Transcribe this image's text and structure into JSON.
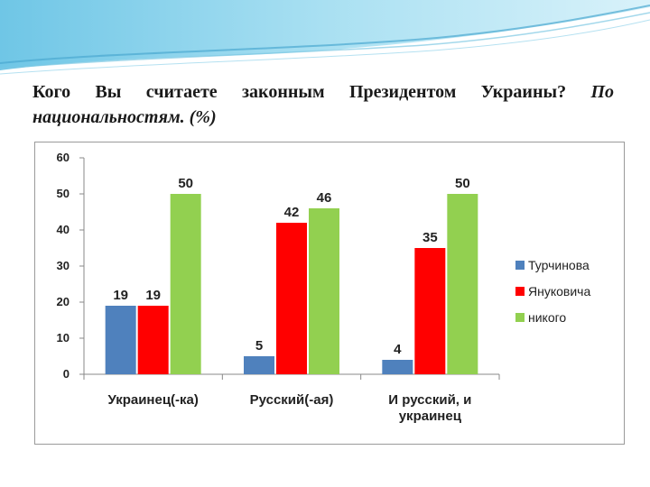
{
  "slide": {
    "title_line1": "Кого Вы считаете законным Президентом Украины?",
    "title_line1_italic": "По",
    "title_line2": "национальностям. (%)"
  },
  "chart_data": {
    "type": "bar",
    "title": "",
    "xlabel": "",
    "ylabel": "",
    "ylim": [
      0,
      60
    ],
    "yticks": [
      0,
      10,
      20,
      30,
      40,
      50,
      60
    ],
    "grid": false,
    "legend_position": "right",
    "categories": [
      "Украинец(-ка)",
      "Русский(-ая)",
      "И русский, и украинец"
    ],
    "category_lines": [
      [
        "Украинец(-ка)"
      ],
      [
        "Русский(-ая)"
      ],
      [
        "И русский, и",
        "украинец"
      ]
    ],
    "series": [
      {
        "name": "Турчинова",
        "color": "#4f81bd",
        "values": [
          19,
          5,
          4
        ]
      },
      {
        "name": "Януковича",
        "color": "#ff0000",
        "values": [
          19,
          42,
          35
        ]
      },
      {
        "name": "никого",
        "color": "#92d050",
        "values": [
          50,
          46,
          50
        ]
      }
    ]
  }
}
